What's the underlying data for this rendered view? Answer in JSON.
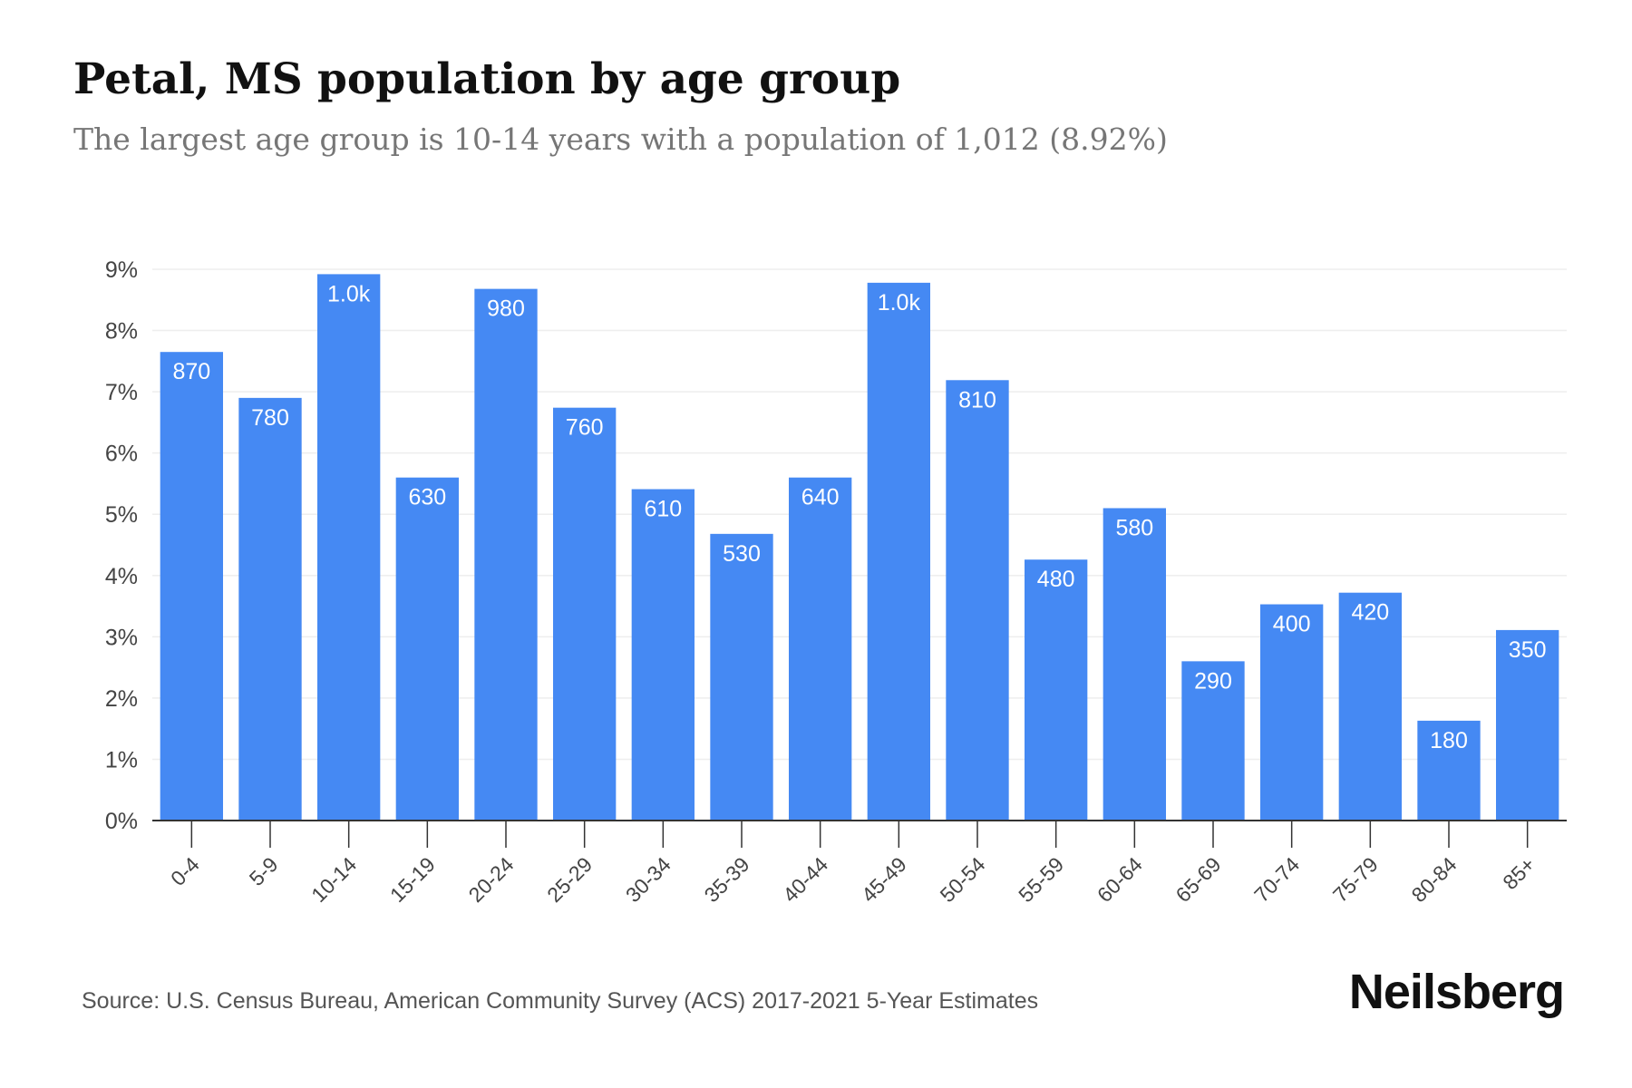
{
  "title": "Petal, MS population by age group",
  "subtitle": "The largest age group is 10-14 years with a population of 1,012 (8.92%)",
  "source": "Source: U.S. Census Bureau, American Community Survey (ACS) 2017-2021 5-Year Estimates",
  "brand": "Neilsberg",
  "colors": {
    "bar": "#4589f3",
    "bar_label": "#ffffff",
    "axis": "#333333",
    "grid": "#eeeeee",
    "tick_text": "#444444"
  },
  "chart_data": {
    "type": "bar",
    "categories": [
      "0-4",
      "5-9",
      "10-14",
      "15-19",
      "20-24",
      "25-29",
      "30-34",
      "35-39",
      "40-44",
      "45-49",
      "50-54",
      "55-59",
      "60-64",
      "65-69",
      "70-74",
      "75-79",
      "80-84",
      "85+"
    ],
    "values": [
      7.65,
      6.9,
      8.92,
      5.6,
      8.68,
      6.74,
      5.41,
      4.68,
      5.6,
      8.78,
      7.19,
      4.26,
      5.1,
      2.6,
      3.53,
      3.72,
      1.63,
      3.11
    ],
    "data_labels": [
      "870",
      "780",
      "1.0k",
      "630",
      "980",
      "760",
      "610",
      "530",
      "640",
      "1.0k",
      "810",
      "480",
      "580",
      "290",
      "400",
      "420",
      "180",
      "350"
    ],
    "y_ticks": [
      "0%",
      "1%",
      "2%",
      "3%",
      "4%",
      "5%",
      "6%",
      "7%",
      "8%",
      "9%"
    ],
    "ylim": [
      0,
      9
    ],
    "xlabel": "",
    "ylabel": "",
    "grid": true
  }
}
